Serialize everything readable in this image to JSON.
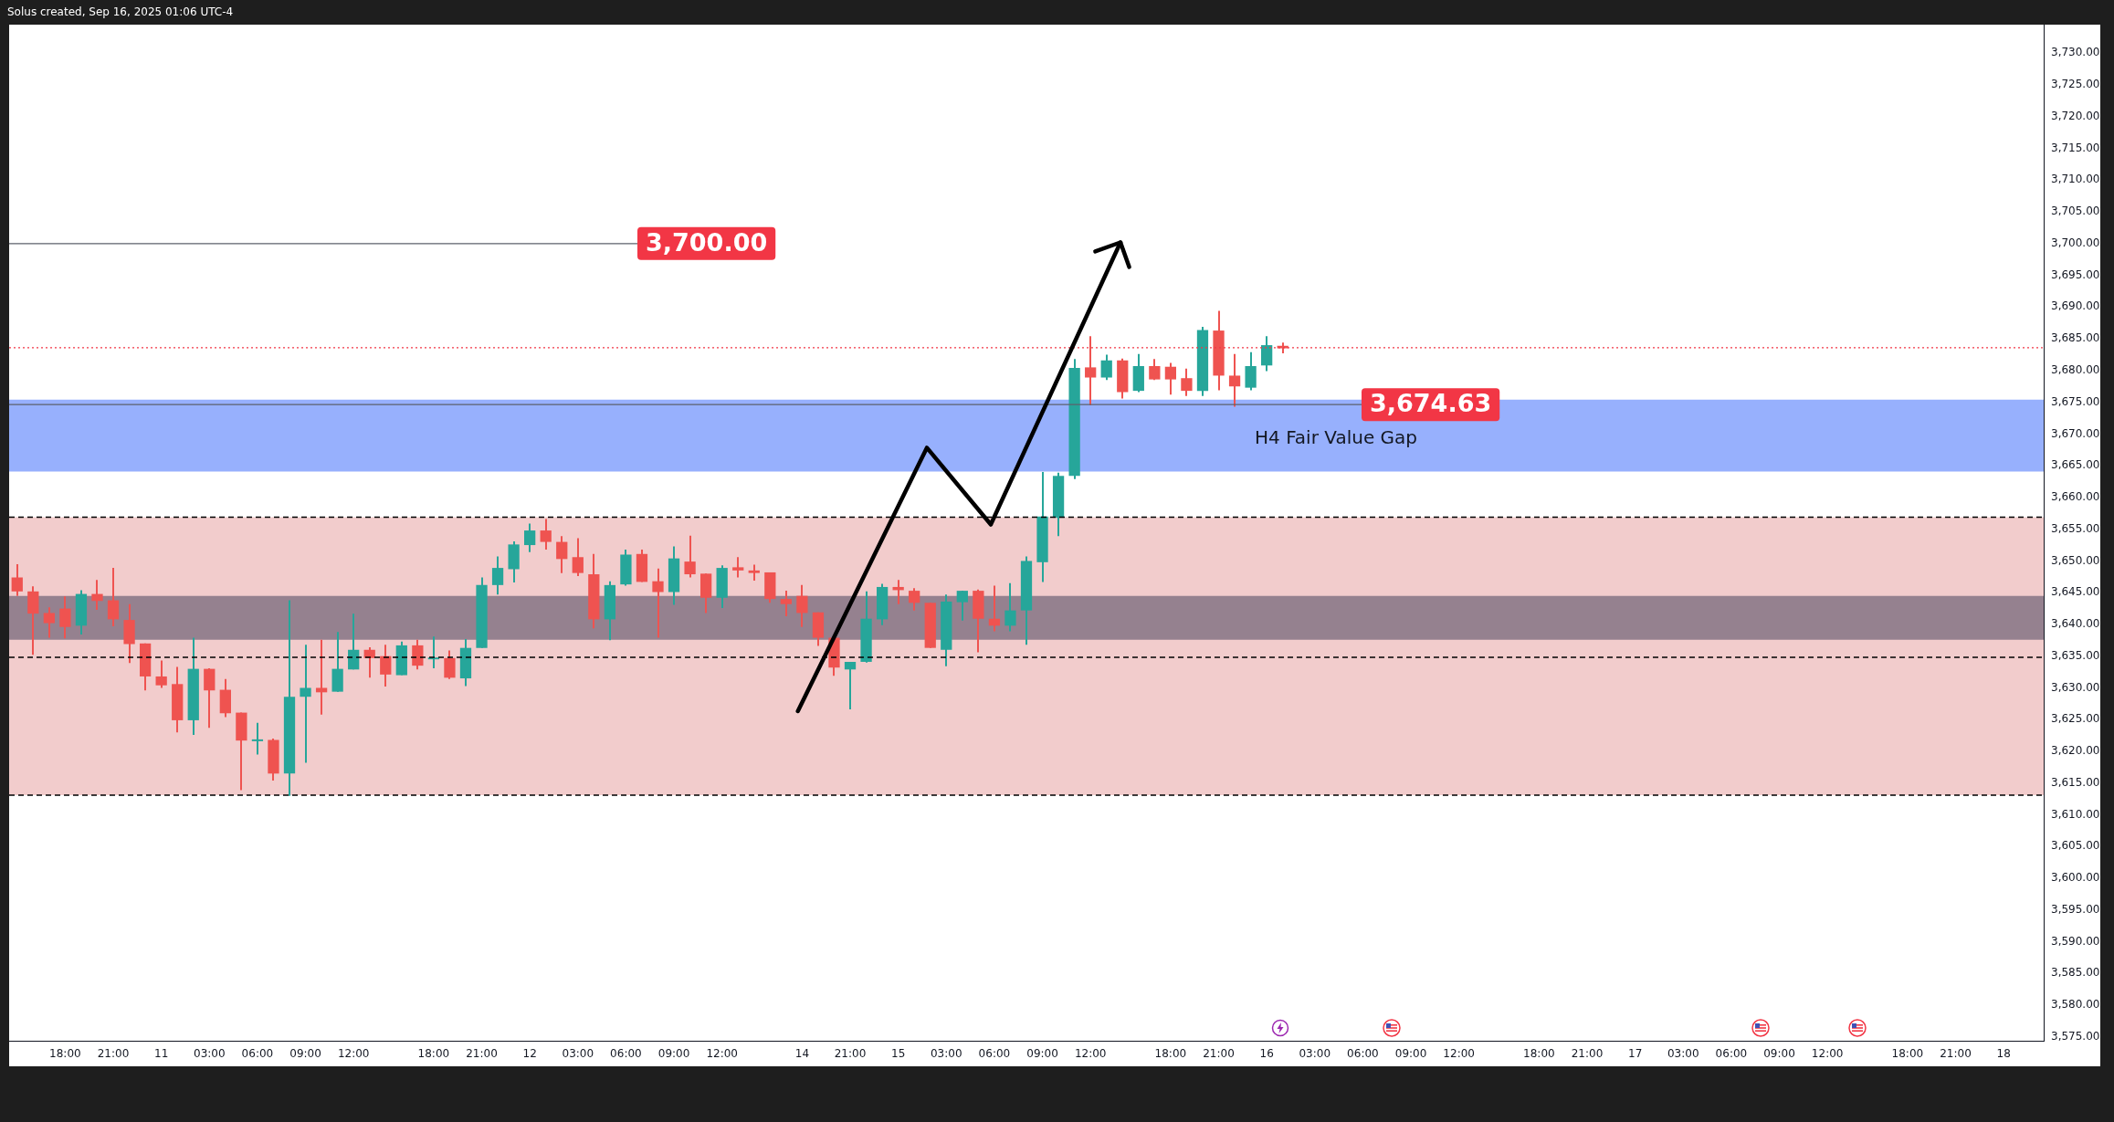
{
  "chart_data": {
    "type": "candlestick",
    "title": "Solus created, Sep 16, 2025 01:06 UTC-4",
    "categories": [
      null,
      null,
      null,
      "18:00",
      null,
      null,
      "21:00",
      null,
      null,
      "11",
      null,
      null,
      "03:00",
      null,
      null,
      "06:00",
      null,
      null,
      "09:00",
      null,
      null,
      "12:00",
      null,
      null,
      null,
      null,
      "18:00",
      null,
      null,
      "21:00",
      null,
      null,
      "12",
      null,
      null,
      "03:00",
      null,
      null,
      "06:00",
      null,
      null,
      "09:00",
      null,
      null,
      "12:00",
      null,
      null,
      null,
      null,
      "14",
      null,
      null,
      "21:00",
      null,
      null,
      "15",
      null,
      null,
      "03:00",
      null,
      null,
      "06:00",
      null,
      null,
      "09:00",
      null,
      null,
      "12:00",
      null,
      null,
      null,
      null,
      "18:00",
      null,
      null,
      "21:00",
      null,
      null,
      "16",
      null,
      null,
      "03:00",
      null,
      null,
      "06:00",
      null,
      null,
      "09:00",
      null,
      null,
      "12:00",
      null,
      null,
      null,
      null,
      "18:00",
      null,
      null,
      "21:00",
      null,
      null,
      "17",
      null,
      null,
      "03:00",
      null,
      null,
      "06:00",
      null,
      null,
      "09:00",
      null,
      null,
      "12:00",
      null,
      null,
      null,
      null,
      "18:00",
      null,
      null,
      "21:00",
      null,
      null,
      "18",
      null,
      null
    ],
    "ohlc": [
      [
        3647.4,
        3649.5,
        3644.5,
        3645.2
      ],
      [
        3645.2,
        3646.0,
        3635.2,
        3641.7
      ],
      [
        3641.8,
        3642.7,
        3637.9,
        3640.2
      ],
      [
        3642.5,
        3644.4,
        3637.8,
        3639.6
      ],
      [
        3639.8,
        3645.4,
        3638.4,
        3644.8
      ],
      [
        3644.8,
        3647.0,
        3642.3,
        3643.7
      ],
      [
        3643.8,
        3648.9,
        3639.7,
        3640.8
      ],
      [
        3640.7,
        3643.2,
        3633.9,
        3636.9
      ],
      [
        3637.0,
        3637.0,
        3629.6,
        3631.8
      ],
      [
        3631.8,
        3634.3,
        3630.0,
        3630.4
      ],
      [
        3630.6,
        3633.3,
        3623.0,
        3624.9
      ],
      [
        3624.9,
        3637.9,
        3622.6,
        3633.0
      ],
      [
        3633.0,
        3633.1,
        3623.7,
        3629.6
      ],
      [
        3629.7,
        3631.4,
        3625.4,
        3626.0
      ],
      [
        3626.1,
        3626.1,
        3613.9,
        3621.7
      ],
      [
        3621.6,
        3624.5,
        3619.5,
        3621.8
      ],
      [
        3621.8,
        3622.0,
        3615.4,
        3616.5
      ],
      [
        3616.5,
        3643.8,
        3613.0,
        3628.6
      ],
      [
        3628.6,
        3636.8,
        3618.2,
        3630.0
      ],
      [
        3630.0,
        3637.6,
        3625.8,
        3629.3
      ],
      [
        3629.4,
        3638.8,
        3629.4,
        3633.0
      ],
      [
        3632.9,
        3641.7,
        3632.9,
        3636.0
      ],
      [
        3636.0,
        3636.4,
        3631.6,
        3634.7
      ],
      [
        3635.0,
        3636.8,
        3630.2,
        3632.1
      ],
      [
        3632.0,
        3637.3,
        3632.0,
        3636.7
      ],
      [
        3636.7,
        3637.6,
        3632.9,
        3633.5
      ],
      [
        3634.5,
        3638.1,
        3633.1,
        3634.7
      ],
      [
        3634.7,
        3635.9,
        3631.4,
        3631.6
      ],
      [
        3631.5,
        3637.7,
        3630.3,
        3636.3
      ],
      [
        3636.3,
        3647.4,
        3636.3,
        3646.2
      ],
      [
        3646.2,
        3650.7,
        3644.7,
        3648.9
      ],
      [
        3648.7,
        3653.1,
        3646.6,
        3652.6
      ],
      [
        3652.5,
        3655.9,
        3651.4,
        3654.8
      ],
      [
        3654.8,
        3656.6,
        3651.8,
        3653.0
      ],
      [
        3653.0,
        3653.9,
        3648.1,
        3650.3
      ],
      [
        3650.6,
        3653.6,
        3647.6,
        3648.1
      ],
      [
        3647.9,
        3651.1,
        3639.4,
        3640.8
      ],
      [
        3640.8,
        3646.8,
        3637.5,
        3646.2
      ],
      [
        3646.3,
        3651.8,
        3646.1,
        3651.0
      ],
      [
        3651.1,
        3651.8,
        3646.7,
        3646.7
      ],
      [
        3646.8,
        3648.8,
        3637.9,
        3645.1
      ],
      [
        3645.1,
        3652.3,
        3643.1,
        3650.4
      ],
      [
        3649.9,
        3654.0,
        3647.4,
        3647.9
      ],
      [
        3648.0,
        3648.0,
        3641.8,
        3644.2
      ],
      [
        3644.2,
        3649.3,
        3642.6,
        3648.9
      ],
      [
        3649.0,
        3650.6,
        3647.4,
        3648.5
      ],
      [
        3648.5,
        3649.4,
        3646.9,
        3648.1
      ],
      [
        3648.2,
        3648.2,
        3643.4,
        3644.0
      ],
      [
        3644.0,
        3645.3,
        3641.3,
        3643.2
      ],
      [
        3644.5,
        3646.2,
        3639.6,
        3641.8
      ],
      [
        3641.9,
        3641.9,
        3636.6,
        3637.9
      ],
      [
        3637.9,
        3637.9,
        3631.9,
        3633.2
      ],
      [
        3632.9,
        3634.1,
        3626.6,
        3634.1
      ],
      [
        3634.1,
        3645.2,
        3634.0,
        3640.9
      ],
      [
        3640.8,
        3646.4,
        3639.9,
        3645.9
      ],
      [
        3645.9,
        3647.0,
        3643.2,
        3645.4
      ],
      [
        3645.3,
        3645.7,
        3642.2,
        3643.4
      ],
      [
        3643.4,
        3643.4,
        3636.3,
        3636.3
      ],
      [
        3636.0,
        3644.7,
        3633.4,
        3643.6
      ],
      [
        3643.5,
        3645.3,
        3640.6,
        3645.3
      ],
      [
        3645.3,
        3645.5,
        3635.6,
        3640.9
      ],
      [
        3640.9,
        3646.1,
        3638.9,
        3639.8
      ],
      [
        3639.8,
        3646.5,
        3638.9,
        3642.2
      ],
      [
        3642.2,
        3650.7,
        3636.8,
        3650.0
      ],
      [
        3649.8,
        3664.0,
        3646.7,
        3657.0
      ],
      [
        3656.8,
        3663.9,
        3653.9,
        3663.4
      ],
      [
        3663.4,
        3681.8,
        3662.9,
        3680.4
      ],
      [
        3680.5,
        3685.4,
        3674.5,
        3678.9
      ],
      [
        3678.9,
        3682.5,
        3678.5,
        3681.6
      ],
      [
        3681.6,
        3681.9,
        3675.6,
        3676.6
      ],
      [
        3676.8,
        3682.6,
        3676.6,
        3680.7
      ],
      [
        3680.7,
        3681.8,
        3678.5,
        3678.6
      ],
      [
        3680.6,
        3681.2,
        3676.2,
        3678.6
      ],
      [
        3678.8,
        3680.3,
        3676.0,
        3676.8
      ],
      [
        3676.8,
        3686.9,
        3676.0,
        3686.4
      ],
      [
        3686.3,
        3689.4,
        3676.9,
        3679.2
      ],
      [
        3679.2,
        3682.6,
        3674.3,
        3677.5
      ],
      [
        3677.3,
        3682.9,
        3676.9,
        3680.7
      ],
      [
        3680.8,
        3685.4,
        3679.9,
        3684.0
      ],
      [
        3683.9,
        3684.4,
        3682.7,
        3683.5
      ],
      null,
      null,
      null,
      null,
      null,
      null,
      null,
      null,
      null,
      null,
      null,
      null,
      null,
      null,
      null,
      null,
      null,
      null,
      null,
      null,
      null,
      null,
      null,
      null,
      null,
      null,
      null,
      null,
      null,
      null,
      null,
      null,
      null,
      null,
      null,
      null,
      null,
      null,
      null,
      null,
      null,
      null,
      null,
      null,
      null,
      null,
      null
    ],
    "colors": [
      "#ef5350",
      "#ef5350",
      "#ef5350",
      "#ef5350",
      "#26a69a",
      "#ef5350",
      "#ef5350",
      "#ef5350",
      "#ef5350",
      "#ef5350",
      "#ef5350",
      "#26a69a",
      "#ef5350",
      "#ef5350",
      "#ef5350",
      "#26a69a",
      "#ef5350",
      "#26a69a",
      "#26a69a",
      "#ef5350",
      "#26a69a",
      "#26a69a",
      "#ef5350",
      "#ef5350",
      "#26a69a",
      "#ef5350",
      "#26a69a",
      "#ef5350",
      "#26a69a",
      "#26a69a",
      "#26a69a",
      "#26a69a",
      "#26a69a",
      "#ef5350",
      "#ef5350",
      "#ef5350",
      "#ef5350",
      "#26a69a",
      "#26a69a",
      "#ef5350",
      "#ef5350",
      "#26a69a",
      "#ef5350",
      "#ef5350",
      "#26a69a",
      "#ef5350",
      "#ef5350",
      "#ef5350",
      "#ef5350",
      "#ef5350",
      "#ef5350",
      "#ef5350",
      "#26a69a",
      "#26a69a",
      "#26a69a",
      "#ef5350",
      "#ef5350",
      "#ef5350",
      "#26a69a",
      "#26a69a",
      "#ef5350",
      "#ef5350",
      "#26a69a",
      "#26a69a",
      "#26a69a",
      "#26a69a",
      "#26a69a",
      "#ef5350",
      "#26a69a",
      "#ef5350",
      "#26a69a",
      "#ef5350",
      "#ef5350",
      "#ef5350",
      "#26a69a",
      "#ef5350",
      "#ef5350",
      "#26a69a",
      "#26a69a",
      "#ef5350",
      null,
      null,
      null,
      null,
      null,
      null,
      null,
      null,
      null,
      null,
      null,
      null,
      null,
      null,
      null,
      null,
      null,
      null,
      null,
      null,
      null,
      null,
      null,
      null,
      null,
      null,
      null,
      null,
      null,
      null,
      null,
      null,
      null,
      null,
      null,
      null,
      null,
      null,
      null,
      null,
      null,
      null,
      null,
      null,
      null,
      null,
      null
    ],
    "ylim": [
      3574.4,
      3734.5
    ],
    "yticks": [
      {
        "value": 3575,
        "label": "3,575.00"
      },
      {
        "value": 3580,
        "label": "3,580.00"
      },
      {
        "value": 3585,
        "label": "3,585.00"
      },
      {
        "value": 3590,
        "label": "3,590.00"
      },
      {
        "value": 3595,
        "label": "3,595.00"
      },
      {
        "value": 3600,
        "label": "3,600.00"
      },
      {
        "value": 3605,
        "label": "3,605.00"
      },
      {
        "value": 3610,
        "label": "3,610.00"
      },
      {
        "value": 3615,
        "label": "3,615.00"
      },
      {
        "value": 3620,
        "label": "3,620.00"
      },
      {
        "value": 3625,
        "label": "3,625.00"
      },
      {
        "value": 3630,
        "label": "3,630.00"
      },
      {
        "value": 3635,
        "label": "3,635.00"
      },
      {
        "value": 3640,
        "label": "3,640.00"
      },
      {
        "value": 3645,
        "label": "3,645.00"
      },
      {
        "value": 3650,
        "label": "3,650.00"
      },
      {
        "value": 3655,
        "label": "3,655.00"
      },
      {
        "value": 3660,
        "label": "3,660.00"
      },
      {
        "value": 3665,
        "label": "3,665.00"
      },
      {
        "value": 3670,
        "label": "3,670.00"
      },
      {
        "value": 3675,
        "label": "3,675.00"
      },
      {
        "value": 3680,
        "label": "3,680.00"
      },
      {
        "value": 3685,
        "label": "3,685.00"
      },
      {
        "value": 3690,
        "label": "3,690.00"
      },
      {
        "value": 3695,
        "label": "3,695.00"
      },
      {
        "value": 3700,
        "label": "3,700.00"
      },
      {
        "value": 3705,
        "label": "3,705.00"
      },
      {
        "value": 3710,
        "label": "3,710.00"
      },
      {
        "value": 3715,
        "label": "3,715.00"
      },
      {
        "value": 3720,
        "label": "3,720.00"
      },
      {
        "value": 3725,
        "label": "3,725.00"
      },
      {
        "value": 3730,
        "label": "3,730.00"
      }
    ],
    "bands": [
      {
        "axis": "y",
        "from": 3613.1,
        "to": 3656.9,
        "color": "#f2cccc"
      },
      {
        "axis": "y",
        "from": 3637.6,
        "to": 3644.5,
        "color": "#95818f"
      },
      {
        "axis": "y",
        "from": 3664.1,
        "to": 3675.4,
        "label": "H4 Fair Value Gap",
        "color": "#97b0fd"
      }
    ],
    "ref_lines": [
      {
        "axis": "y",
        "value": 3700,
        "label": "3,700.00",
        "color": "#5d606b"
      },
      {
        "axis": "y",
        "value": 3674.63,
        "label": "3,674.63",
        "color": "#5d606b"
      },
      {
        "axis": "y",
        "value": 3683.6,
        "color": "#f23645",
        "line_style": "dotted"
      },
      {
        "axis": "y",
        "value": 3656.9,
        "color": "#000000",
        "line_style": "dashed"
      },
      {
        "axis": "y",
        "value": 3634.8,
        "color": "#000000",
        "line_style": "dashed"
      },
      {
        "axis": "y",
        "value": 3613.1,
        "color": "#000000",
        "line_style": "dashed"
      }
    ]
  }
}
